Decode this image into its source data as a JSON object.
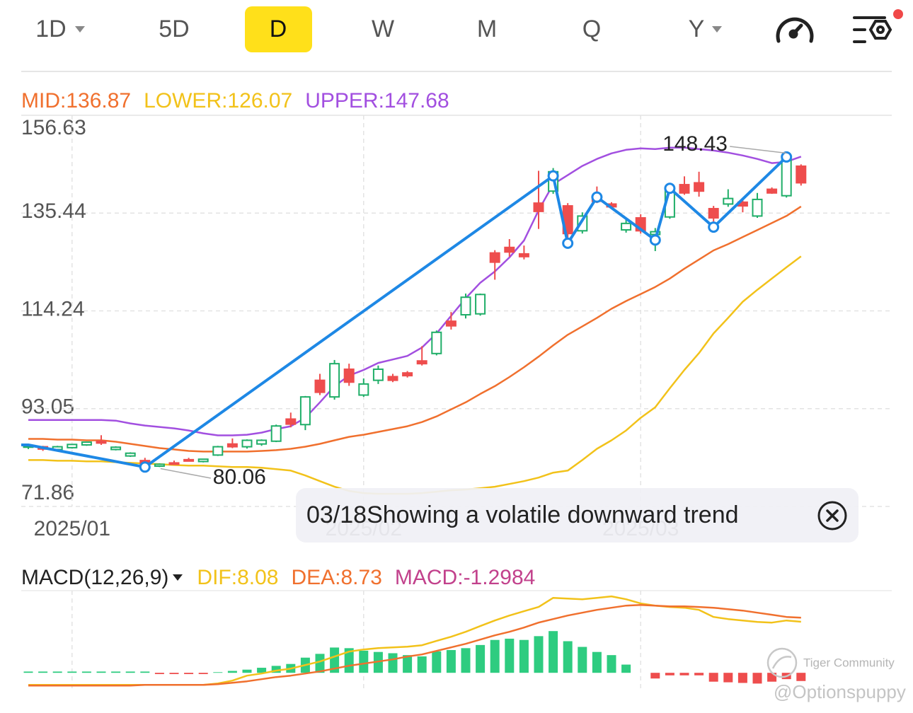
{
  "tabs": [
    "1D",
    "5D",
    "D",
    "W",
    "M",
    "Q",
    "Y"
  ],
  "selected_tab": 2,
  "chart_data": [
    {
      "type": "candlestick",
      "categories": [
        null,
        null,
        null,
        "2025/01",
        null,
        null,
        null,
        null,
        null,
        null,
        null,
        null,
        null,
        null,
        null,
        null,
        null,
        null,
        null,
        null,
        null,
        null,
        null,
        "2025/02",
        null,
        null,
        null,
        null,
        null,
        null,
        null,
        null,
        null,
        null,
        null,
        null,
        null,
        null,
        null,
        null,
        null,
        null,
        "2025/03",
        null,
        null,
        null,
        null,
        null,
        null,
        null,
        null,
        null,
        null,
        null
      ],
      "open": [
        84.8,
        84.8,
        84.2,
        84.6,
        85.2,
        86.0,
        84.2,
        82.8,
        81.8,
        80.6,
        81.3,
        82.0,
        81.6,
        83.0,
        85.4,
        84.8,
        85.4,
        86.0,
        90.8,
        89.6,
        99.2,
        95.6,
        101.6,
        96.0,
        99.2,
        100.0,
        100.8,
        103.4,
        105.0,
        112.0,
        113.4,
        113.6,
        126.8,
        128.0,
        126.6,
        137.6,
        140.2,
        137.0,
        131.6,
        138.4,
        137.4,
        131.8,
        134.4,
        130.8,
        134.6,
        141.6,
        142.0,
        136.4,
        137.4,
        137.8,
        134.8,
        140.6,
        139.2,
        145.6
      ],
      "high": [
        85.3,
        85.0,
        85.0,
        85.4,
        85.9,
        87.3,
        84.9,
        83.6,
        82.4,
        81.2,
        81.8,
        82.4,
        82.2,
        85.0,
        86.6,
        86.4,
        86.4,
        89.6,
        92.2,
        95.8,
        100.6,
        103.6,
        102.8,
        99.6,
        102.4,
        100.6,
        101.2,
        106.6,
        110.0,
        114.0,
        118.0,
        118.0,
        127.4,
        129.8,
        128.4,
        144.6,
        145.2,
        137.6,
        135.6,
        141.2,
        137.8,
        134.0,
        135.2,
        132.2,
        141.6,
        143.4,
        144.4,
        137.0,
        140.6,
        138.2,
        139.8,
        141.0,
        148.43,
        146.0
      ],
      "low": [
        84.3,
        83.9,
        84.0,
        84.4,
        85.0,
        85.2,
        84.0,
        82.6,
        80.06,
        80.4,
        80.9,
        81.6,
        81.4,
        82.8,
        84.5,
        84.4,
        85.0,
        85.8,
        89.0,
        88.4,
        96.0,
        95.0,
        98.0,
        95.6,
        98.4,
        98.8,
        99.8,
        102.4,
        104.6,
        110.2,
        112.6,
        113.2,
        121.0,
        126.0,
        125.4,
        132.0,
        139.6,
        129.0,
        131.0,
        137.6,
        136.4,
        131.2,
        131.0,
        127.2,
        134.2,
        139.4,
        139.0,
        133.6,
        136.8,
        135.6,
        134.4,
        139.6,
        138.8,
        141.4
      ],
      "close": [
        85.0,
        84.3,
        84.8,
        85.3,
        85.8,
        85.6,
        84.7,
        83.4,
        80.5,
        81.0,
        81.1,
        81.8,
        82.1,
        84.8,
        84.8,
        86.2,
        86.2,
        89.3,
        89.7,
        95.6,
        96.6,
        102.8,
        98.8,
        98.4,
        101.6,
        99.2,
        100.2,
        102.8,
        109.6,
        111.0,
        117.2,
        117.8,
        124.8,
        127.0,
        126.0,
        135.8,
        144.4,
        131.0,
        134.8,
        138.0,
        136.8,
        133.2,
        131.6,
        131.4,
        141.0,
        139.8,
        140.2,
        134.4,
        138.6,
        137.0,
        138.4,
        139.8,
        147.2,
        142.0
      ],
      "up_color": "#1fae68",
      "down_color": "#ee4d4d",
      "series": [
        {
          "name": "MID:",
          "color": "#f0702e",
          "values": [
            86.5,
            86.5,
            86.34,
            86.34,
            86.19,
            86.19,
            85.89,
            85.43,
            84.97,
            84.51,
            84.21,
            83.9,
            83.75,
            83.75,
            83.75,
            83.75,
            83.9,
            84.06,
            84.36,
            84.82,
            85.43,
            86.19,
            86.95,
            87.41,
            88.02,
            88.63,
            89.24,
            90.15,
            91.37,
            92.9,
            94.42,
            96.25,
            97.93,
            99.91,
            102.05,
            104.33,
            106.77,
            109.06,
            110.89,
            112.72,
            114.7,
            116.38,
            117.9,
            119.42,
            121.25,
            123.39,
            125.37,
            127.35,
            128.72,
            130.25,
            131.77,
            133.3,
            134.82,
            136.87
          ]
        },
        {
          "name": "LOWER:",
          "color": "#f2c21a",
          "values": [
            81.92,
            81.92,
            81.77,
            81.77,
            81.62,
            81.62,
            81.46,
            81.31,
            81.16,
            81.01,
            80.85,
            80.7,
            80.7,
            80.55,
            80.4,
            80.4,
            80.24,
            79.94,
            79.63,
            78.57,
            77.35,
            76.13,
            75.21,
            74.76,
            74.6,
            74.6,
            74.6,
            74.76,
            75.06,
            75.37,
            75.52,
            75.82,
            76.13,
            76.74,
            77.35,
            78.11,
            79.18,
            79.63,
            81.92,
            84.36,
            86.19,
            88.32,
            91.07,
            93.36,
            97.47,
            101.44,
            105.09,
            109.36,
            112.72,
            116.22,
            118.81,
            121.25,
            123.69,
            126.07
          ]
        },
        {
          "name": "UPPER:",
          "color": "#a24fe0",
          "values": [
            90.61,
            90.61,
            90.61,
            90.61,
            90.61,
            90.61,
            90.46,
            89.85,
            89.39,
            89.09,
            88.78,
            88.32,
            87.71,
            87.26,
            87.26,
            87.41,
            87.87,
            88.63,
            89.24,
            91.07,
            94.42,
            97.93,
            100.22,
            101.44,
            102.96,
            103.72,
            104.48,
            106.31,
            109.36,
            113.17,
            116.99,
            120.34,
            122.78,
            125.83,
            129.49,
            136.04,
            141.68,
            143.66,
            145.65,
            147.17,
            148.39,
            149.15,
            149.46,
            149.3,
            149.61,
            149.61,
            149.3,
            149.0,
            148.54,
            147.93,
            147.17,
            146.26,
            146.56,
            147.68
          ]
        }
      ],
      "zigzag": {
        "color": "#1e88e5",
        "x": [
          0,
          8,
          36,
          37,
          39,
          43,
          44,
          47,
          52
        ],
        "values": [
          85.2,
          80.4,
          143.5,
          128.9,
          138.9,
          129.6,
          140.8,
          132.4,
          147.6
        ]
      },
      "ylim": [
        71.86,
        156.63
      ],
      "yticks": [
        71.86,
        93.05,
        114.24,
        135.44,
        156.63
      ],
      "grid": true
    },
    {
      "type": "macd",
      "title": "MACD(12,26,9)",
      "series": [
        {
          "name": "DIF:",
          "color": "#f2c21a",
          "values": [
            -1.9,
            -1.9,
            -1.9,
            -1.9,
            -1.9,
            -1.9,
            -1.9,
            -1.9,
            -1.9,
            -1.9,
            -1.9,
            -1.9,
            -1.9,
            -1.68,
            -1.23,
            -0.45,
            -0.11,
            0.34,
            0.67,
            1.23,
            1.79,
            2.57,
            3.36,
            3.69,
            3.92,
            4.03,
            4.14,
            4.36,
            5.04,
            5.71,
            6.49,
            7.39,
            8.28,
            9.06,
            9.74,
            10.41,
            11.86,
            11.75,
            11.64,
            11.86,
            12.09,
            11.64,
            10.97,
            10.63,
            10.41,
            10.29,
            9.96,
            8.84,
            8.5,
            8.28,
            8.06,
            7.94,
            8.28,
            8.08
          ]
        },
        {
          "name": "DEA:",
          "color": "#f0702e",
          "values": [
            -2.01,
            -2.01,
            -2.01,
            -2.01,
            -2.01,
            -2.01,
            -2.01,
            -2.01,
            -1.9,
            -1.9,
            -1.9,
            -1.9,
            -1.9,
            -1.79,
            -1.57,
            -1.34,
            -1.01,
            -0.67,
            -0.45,
            -0.11,
            0.22,
            0.67,
            1.12,
            1.45,
            1.79,
            2.13,
            2.57,
            2.91,
            3.47,
            4.03,
            4.59,
            5.26,
            5.93,
            6.49,
            7.16,
            7.94,
            8.5,
            9.06,
            9.51,
            9.96,
            10.29,
            10.63,
            10.74,
            10.63,
            10.52,
            10.52,
            10.41,
            10.29,
            10.07,
            9.85,
            9.51,
            9.18,
            8.84,
            8.73
          ]
        },
        {
          "name": "MACD:",
          "color": "#c2418c",
          "up_color": "#2ecc80",
          "down_color": "#ee4d4d",
          "values": [
            0.2,
            0.2,
            0.2,
            0.2,
            0.2,
            0.2,
            0.2,
            0.2,
            0.2,
            -0.2,
            -0.2,
            -0.2,
            -0.2,
            0.1,
            0.3,
            0.5,
            0.8,
            1.1,
            1.4,
            2.4,
            3.0,
            4.0,
            3.9,
            3.5,
            3.3,
            3.1,
            2.8,
            2.6,
            3.4,
            3.6,
            3.9,
            4.4,
            5.2,
            5.4,
            5.2,
            5.8,
            6.6,
            5.0,
            4.1,
            3.3,
            2.8,
            1.3,
            0,
            -0.9,
            -0.4,
            -0.4,
            -0.4,
            -1.4,
            -1.5,
            -1.6,
            -1.7,
            -1.4,
            -1.0,
            -1.2984
          ]
        }
      ],
      "ylim": [
        -3,
        13
      ]
    }
  ],
  "tooltip": {
    "date": "03/18",
    "text": "Showing a volatile downward trend"
  },
  "watermark": {
    "brand": "Tiger Community",
    "user": "@Optionspuppy"
  }
}
